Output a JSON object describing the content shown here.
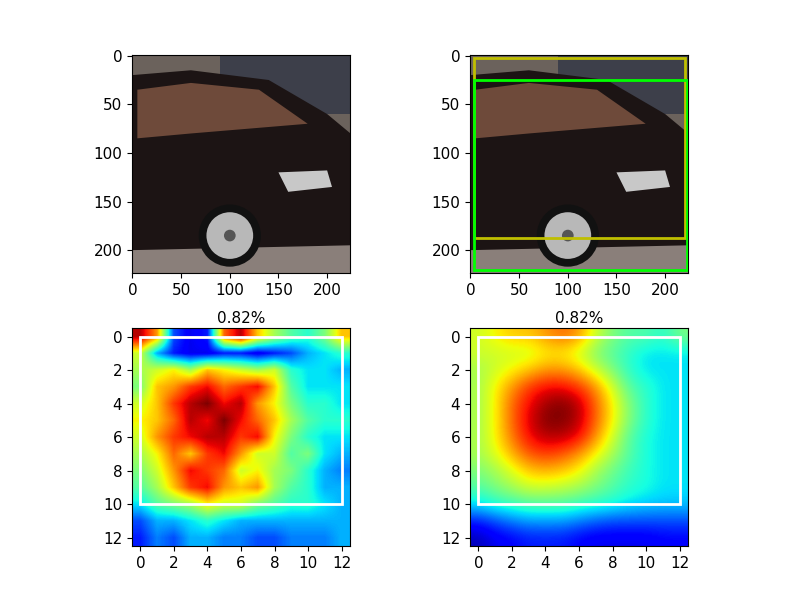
{
  "chart_data": [
    {
      "type": "image",
      "xlim": [
        -0.5,
        223.5
      ],
      "ylim": [
        223.5,
        -0.5
      ],
      "xticks": [
        0,
        50,
        100,
        150,
        200
      ],
      "yticks": [
        0,
        50,
        100,
        150,
        200
      ]
    },
    {
      "type": "image",
      "xlim": [
        -0.5,
        223.5
      ],
      "ylim": [
        223.5,
        -0.5
      ],
      "xticks": [
        0,
        50,
        100,
        150,
        200
      ],
      "yticks": [
        0,
        50,
        100,
        150,
        200
      ],
      "boxes": [
        {
          "color": "#bfbf00",
          "coords": [
            4,
            2,
            220,
            188
          ]
        },
        {
          "color": "#00ff00",
          "coords": [
            4,
            25,
            222,
            220
          ]
        }
      ]
    },
    {
      "type": "heatmap",
      "title": "0.82%",
      "xlim": [
        -0.5,
        12.5
      ],
      "ylim": [
        12.5,
        -0.5
      ],
      "xticks": [
        0,
        2,
        4,
        6,
        8,
        10,
        12
      ],
      "yticks": [
        0,
        2,
        4,
        6,
        8,
        10,
        12
      ],
      "color_range": [
        0,
        1
      ],
      "boxes": [
        {
          "color": "#ffffff",
          "coords": [
            0,
            0,
            12,
            10
          ]
        }
      ],
      "cells": [
        [
          0.95,
          0.75,
          0.2,
          0.1,
          0.15,
          0.8,
          0.95,
          0.7,
          0.55,
          0.45,
          0.4,
          0.5,
          0.7
        ],
        [
          0.6,
          0.3,
          0.15,
          0.1,
          0.1,
          0.15,
          0.15,
          0.1,
          0.15,
          0.2,
          0.3,
          0.35,
          0.4
        ],
        [
          0.55,
          0.6,
          0.65,
          0.55,
          0.7,
          0.65,
          0.6,
          0.55,
          0.6,
          0.4,
          0.35,
          0.35,
          0.3
        ],
        [
          0.5,
          0.7,
          0.75,
          0.85,
          0.9,
          0.8,
          0.85,
          0.9,
          0.7,
          0.45,
          0.35,
          0.35,
          0.35
        ],
        [
          0.6,
          0.7,
          0.85,
          0.95,
          1.0,
          0.9,
          0.95,
          0.75,
          0.65,
          0.5,
          0.4,
          0.4,
          0.35
        ],
        [
          0.65,
          0.7,
          0.8,
          0.95,
          0.9,
          1.0,
          0.9,
          0.8,
          0.7,
          0.55,
          0.45,
          0.4,
          0.4
        ],
        [
          0.6,
          0.75,
          0.85,
          0.9,
          0.95,
          0.95,
          0.85,
          0.9,
          0.65,
          0.5,
          0.4,
          0.35,
          0.35
        ],
        [
          0.55,
          0.65,
          0.8,
          0.7,
          0.85,
          0.9,
          0.75,
          0.6,
          0.6,
          0.45,
          0.5,
          0.35,
          0.3
        ],
        [
          0.5,
          0.6,
          0.75,
          0.9,
          0.85,
          0.8,
          0.6,
          0.65,
          0.55,
          0.5,
          0.4,
          0.3,
          0.25
        ],
        [
          0.45,
          0.55,
          0.7,
          0.85,
          0.9,
          0.75,
          0.7,
          0.75,
          0.55,
          0.45,
          0.4,
          0.3,
          0.3
        ],
        [
          0.35,
          0.45,
          0.5,
          0.55,
          0.65,
          0.6,
          0.6,
          0.5,
          0.45,
          0.4,
          0.4,
          0.35,
          0.3
        ],
        [
          0.2,
          0.3,
          0.3,
          0.35,
          0.4,
          0.35,
          0.3,
          0.3,
          0.3,
          0.3,
          0.3,
          0.3,
          0.3
        ],
        [
          0.15,
          0.25,
          0.2,
          0.3,
          0.3,
          0.25,
          0.25,
          0.2,
          0.2,
          0.25,
          0.25,
          0.25,
          0.3
        ]
      ]
    },
    {
      "type": "heatmap",
      "title": "0.82%",
      "xlim": [
        -0.5,
        12.5
      ],
      "ylim": [
        12.5,
        -0.5
      ],
      "xticks": [
        0,
        2,
        4,
        6,
        8,
        10,
        12
      ],
      "yticks": [
        0,
        2,
        4,
        6,
        8,
        10,
        12
      ],
      "color_range": [
        0,
        1
      ],
      "boxes": [
        {
          "color": "#ffffff",
          "coords": [
            0,
            0,
            12,
            10
          ]
        }
      ],
      "cells": [
        [
          0.6,
          0.65,
          0.7,
          0.7,
          0.75,
          0.8,
          0.75,
          0.6,
          0.5,
          0.45,
          0.45,
          0.4,
          0.5
        ],
        [
          0.6,
          0.6,
          0.6,
          0.6,
          0.65,
          0.65,
          0.6,
          0.5,
          0.45,
          0.4,
          0.35,
          0.35,
          0.35
        ],
        [
          0.55,
          0.6,
          0.65,
          0.7,
          0.75,
          0.75,
          0.7,
          0.6,
          0.5,
          0.4,
          0.35,
          0.35,
          0.35
        ],
        [
          0.55,
          0.65,
          0.75,
          0.85,
          0.9,
          0.9,
          0.85,
          0.75,
          0.6,
          0.45,
          0.4,
          0.35,
          0.35
        ],
        [
          0.55,
          0.65,
          0.8,
          0.9,
          0.97,
          1.0,
          0.95,
          0.8,
          0.65,
          0.5,
          0.4,
          0.35,
          0.35
        ],
        [
          0.55,
          0.65,
          0.8,
          0.92,
          1.0,
          1.0,
          0.95,
          0.8,
          0.65,
          0.5,
          0.4,
          0.35,
          0.35
        ],
        [
          0.55,
          0.65,
          0.78,
          0.9,
          0.95,
          0.95,
          0.9,
          0.75,
          0.6,
          0.45,
          0.38,
          0.35,
          0.35
        ],
        [
          0.55,
          0.62,
          0.72,
          0.82,
          0.85,
          0.82,
          0.75,
          0.65,
          0.55,
          0.45,
          0.38,
          0.35,
          0.35
        ],
        [
          0.5,
          0.55,
          0.62,
          0.7,
          0.72,
          0.7,
          0.65,
          0.55,
          0.48,
          0.42,
          0.38,
          0.35,
          0.35
        ],
        [
          0.45,
          0.5,
          0.55,
          0.6,
          0.6,
          0.58,
          0.55,
          0.5,
          0.45,
          0.4,
          0.38,
          0.35,
          0.35
        ],
        [
          0.35,
          0.4,
          0.42,
          0.45,
          0.45,
          0.45,
          0.42,
          0.4,
          0.38,
          0.35,
          0.33,
          0.32,
          0.32
        ],
        [
          0.15,
          0.2,
          0.25,
          0.28,
          0.28,
          0.28,
          0.25,
          0.22,
          0.2,
          0.2,
          0.2,
          0.2,
          0.2
        ],
        [
          0.05,
          0.1,
          0.12,
          0.15,
          0.15,
          0.15,
          0.12,
          0.1,
          0.1,
          0.1,
          0.1,
          0.12,
          0.12
        ]
      ]
    }
  ]
}
